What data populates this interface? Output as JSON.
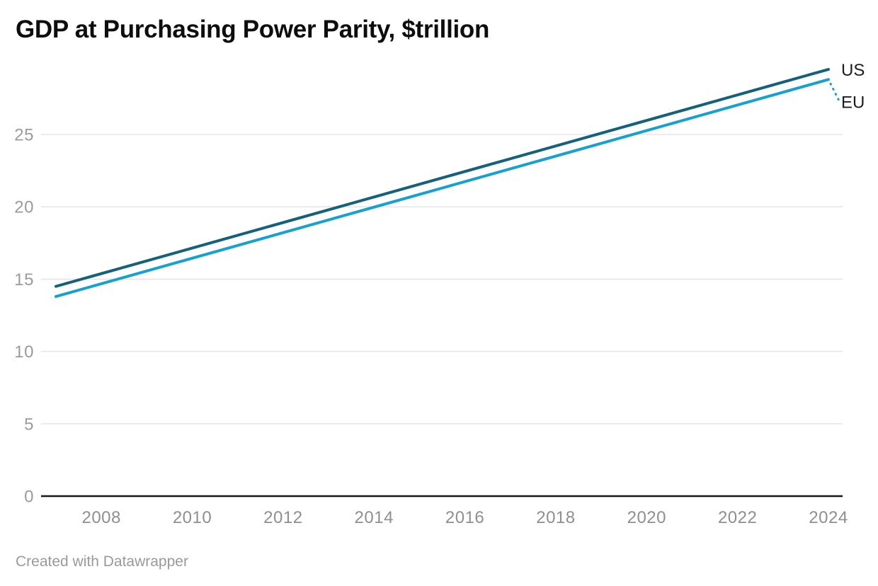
{
  "header": {
    "title": "GDP at Purchasing Power Parity, $trillion"
  },
  "footer": {
    "text": "Created with Datawrapper"
  },
  "chart_data": {
    "type": "line",
    "title": "GDP at Purchasing Power Parity, $trillion",
    "units": "$trillion",
    "x": [
      2007,
      2024
    ],
    "series": [
      {
        "name": "US",
        "values": [
          14.5,
          29.5
        ],
        "color": "#15607a"
      },
      {
        "name": "EU",
        "values": [
          13.8,
          28.8
        ],
        "color": "#18a1cd"
      }
    ],
    "x_ticks": [
      2008,
      2010,
      2012,
      2014,
      2016,
      2018,
      2020,
      2022,
      2024
    ],
    "y_ticks": [
      0,
      5,
      10,
      15,
      20,
      25
    ],
    "xlim": [
      2007,
      2024
    ],
    "ylim": [
      0,
      30
    ],
    "grid": "horizontal-only",
    "legend_position": "end-of-line-labels",
    "colors": {
      "axis_line": "#161616",
      "gridline": "#e6e6e6",
      "y_tick_label": "#9b9b9b",
      "x_tick_label": "#8f8f8f",
      "series_label": "#1d1d1d"
    }
  }
}
